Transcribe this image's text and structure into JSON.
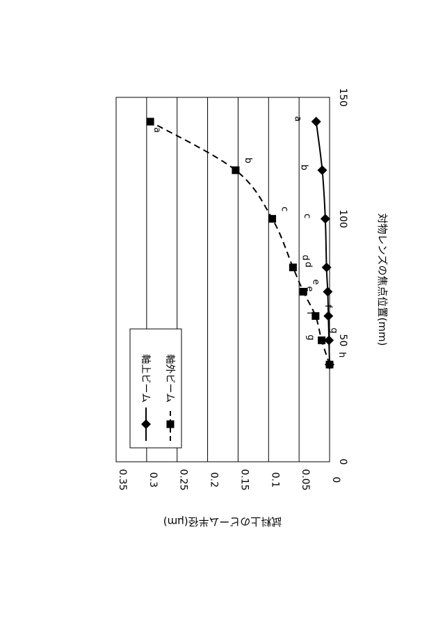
{
  "chart_data": {
    "type": "line",
    "orientation": "rotated-90-clockwise",
    "xlabel": "対物レンズの焦点位置(mm)",
    "ylabel": "試料上のビーム半径(μm)",
    "xlim": [
      0,
      150
    ],
    "ylim": [
      0,
      0.35
    ],
    "x_ticks": [
      "0",
      "50",
      "100",
      "150"
    ],
    "y_ticks": [
      "0",
      "0.05",
      "0.1",
      "0.15",
      "0.2",
      "0.25",
      "0.3",
      "0.35"
    ],
    "grid": "horizontal",
    "legend_position": "bottom-left",
    "series": [
      {
        "name": "軸上ビーム",
        "marker": "diamond",
        "line_style": "solid",
        "x": [
          40,
          50,
          60,
          70,
          80,
          100,
          120,
          140
        ],
        "y": [
          0.0,
          0.001,
          0.002,
          0.003,
          0.005,
          0.007,
          0.012,
          0.022
        ],
        "point_labels": [
          "",
          "g",
          "f",
          "e",
          "d",
          "c",
          "b",
          "a"
        ]
      },
      {
        "name": "軸外ビーム",
        "marker": "square",
        "line_style": "dashed",
        "x": [
          40,
          50,
          60,
          70,
          80,
          100,
          120,
          140
        ],
        "y": [
          0.0,
          0.013,
          0.023,
          0.043,
          0.06,
          0.094,
          0.154,
          0.294
        ],
        "point_labels": [
          "h",
          "g",
          "f",
          "e",
          "d",
          "c",
          "b",
          "a"
        ]
      }
    ]
  }
}
